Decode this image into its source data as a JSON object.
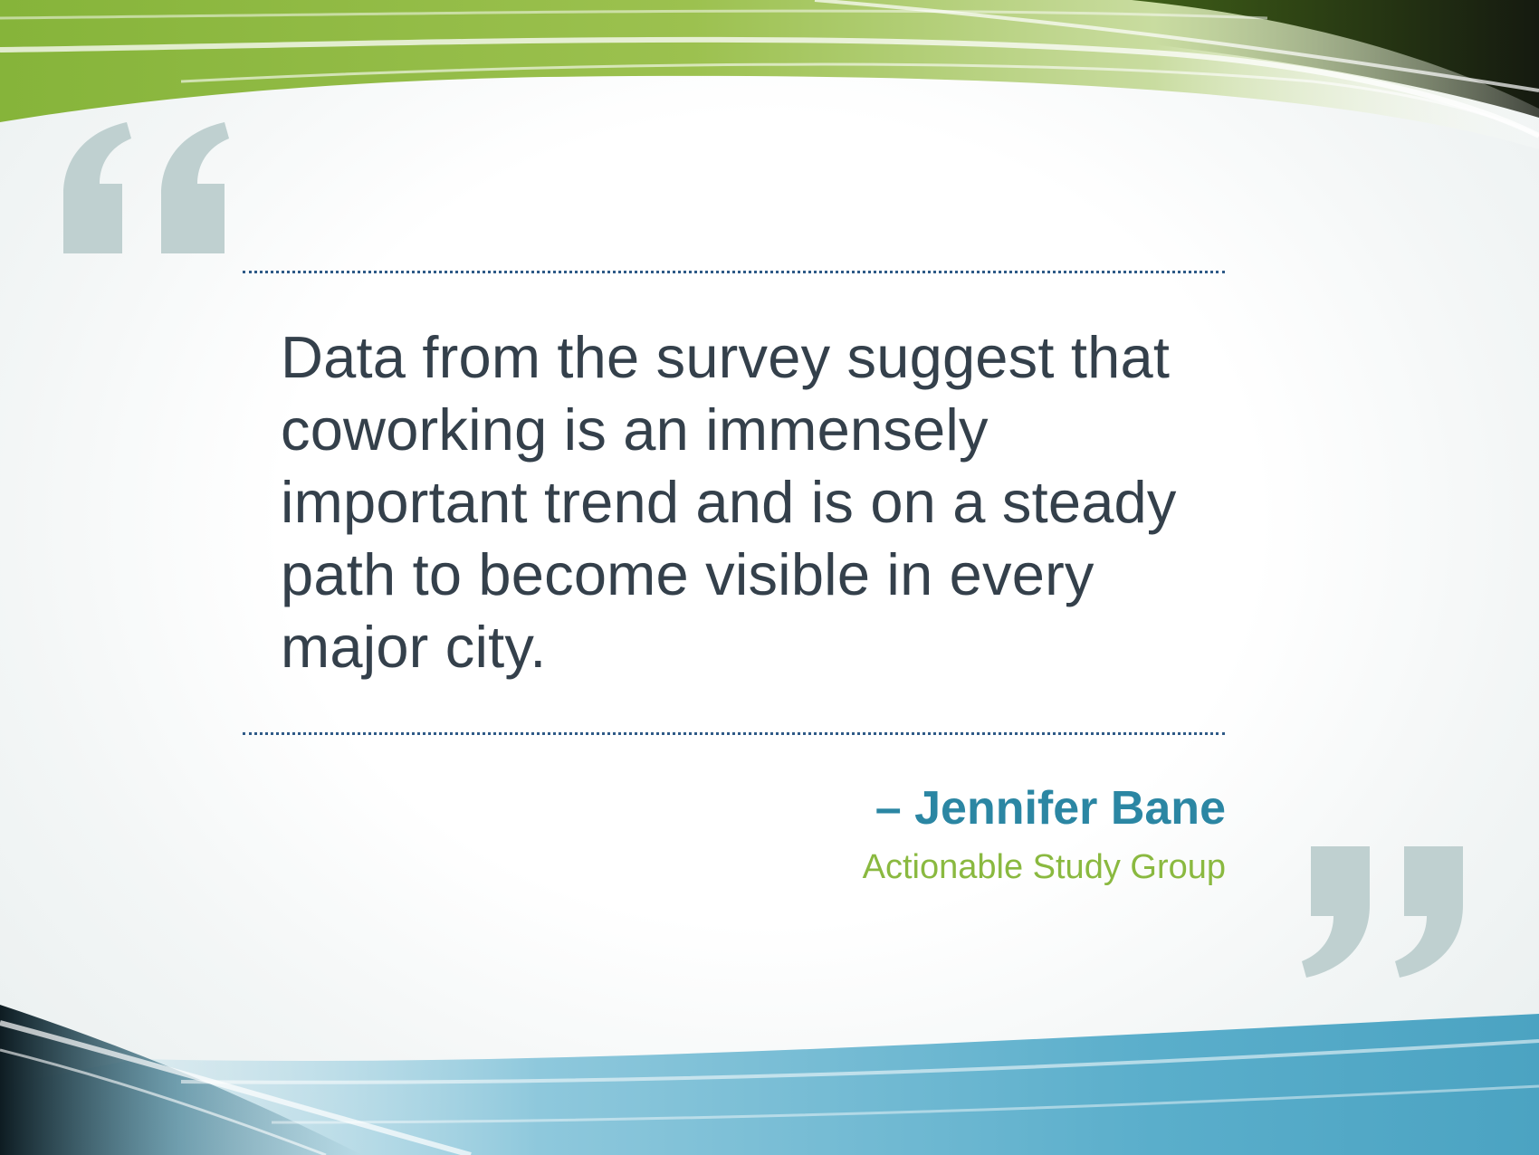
{
  "quote": {
    "text": "Data from the survey suggest that coworking is an immensely important trend and is on a steady path to become visible in every major city.",
    "lines": [
      "Data from the survey suggest that",
      "coworking is an immensely",
      "important trend and is on a steady",
      "path to become visible in every",
      "major city."
    ]
  },
  "attribution": {
    "author": "– Jennifer Bane",
    "organization": "Actionable Study Group"
  },
  "decorations": {
    "open_quote_icon": "open-quote-icon",
    "close_quote_icon": "close-quote-icon",
    "quote_mark_color": "#bfd0d0",
    "top_swoosh_color": "#7fae35",
    "bottom_swoosh_color": "#5fb0cc",
    "divider_color": "#2e5a87"
  }
}
